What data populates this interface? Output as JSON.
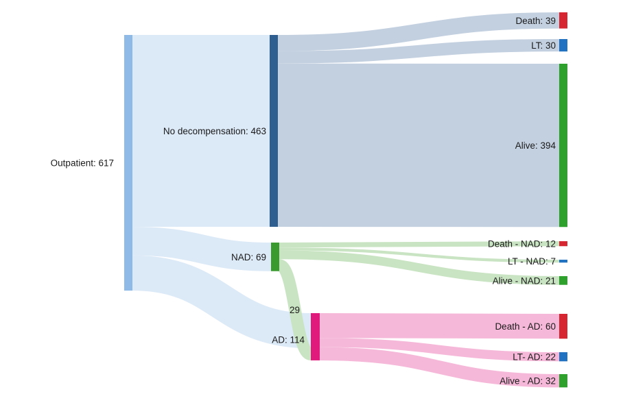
{
  "chart_data": {
    "type": "sankey",
    "nodes": [
      {
        "id": "outpatient",
        "label": "Outpatient: 617",
        "color": "#8fb9e6"
      },
      {
        "id": "nodecomp",
        "label": "No decompensation: 463",
        "color": "#2f5f91"
      },
      {
        "id": "nad",
        "label": "NAD: 69",
        "color": "#3a9a2f"
      },
      {
        "id": "ad",
        "label": "AD: 114",
        "color": "#e0197d"
      },
      {
        "id": "death",
        "label": "Death: 39",
        "color": "#d62631"
      },
      {
        "id": "lt",
        "label": "LT: 30",
        "color": "#2173c1"
      },
      {
        "id": "alive",
        "label": "Alive: 394",
        "color": "#2ea02c"
      },
      {
        "id": "death_nad",
        "label": "Death - NAD: 12",
        "color": "#d62631"
      },
      {
        "id": "lt_nad",
        "label": "LT - NAD: 7",
        "color": "#2173c1"
      },
      {
        "id": "alive_nad",
        "label": "Alive - NAD: 21",
        "color": "#2ea02c"
      },
      {
        "id": "death_ad",
        "label": "Death - AD: 60",
        "color": "#d62631"
      },
      {
        "id": "lt_ad",
        "label": "LT- AD: 22",
        "color": "#2173c1"
      },
      {
        "id": "alive_ad",
        "label": "Alive - AD: 32",
        "color": "#2ea02c"
      }
    ],
    "links": [
      {
        "source": "outpatient",
        "target": "nodecomp",
        "value": 463,
        "color": "#dce9f7"
      },
      {
        "source": "outpatient",
        "target": "nad",
        "value": 69,
        "color": "#dce9f7"
      },
      {
        "source": "outpatient",
        "target": "ad",
        "value": 85,
        "color": "#dce9f7"
      },
      {
        "source": "nodecomp",
        "target": "death",
        "value": 39,
        "color": "#c3d0e0"
      },
      {
        "source": "nodecomp",
        "target": "lt",
        "value": 30,
        "color": "#c3d0e0"
      },
      {
        "source": "nodecomp",
        "target": "alive",
        "value": 394,
        "color": "#c3d0e0"
      },
      {
        "source": "nad",
        "target": "death_nad",
        "value": 12,
        "color": "#c9e4c2"
      },
      {
        "source": "nad",
        "target": "lt_nad",
        "value": 7,
        "color": "#c9e4c2"
      },
      {
        "source": "nad",
        "target": "alive_nad",
        "value": 21,
        "color": "#c9e4c2"
      },
      {
        "source": "nad",
        "target": "ad",
        "value": 29,
        "color": "#c9e4c2",
        "label": "29"
      },
      {
        "source": "ad",
        "target": "death_ad",
        "value": 60,
        "color": "#f6b8d8"
      },
      {
        "source": "ad",
        "target": "lt_ad",
        "value": 22,
        "color": "#f6b8d8"
      },
      {
        "source": "ad",
        "target": "alive_ad",
        "value": 32,
        "color": "#f6b8d8"
      }
    ]
  }
}
